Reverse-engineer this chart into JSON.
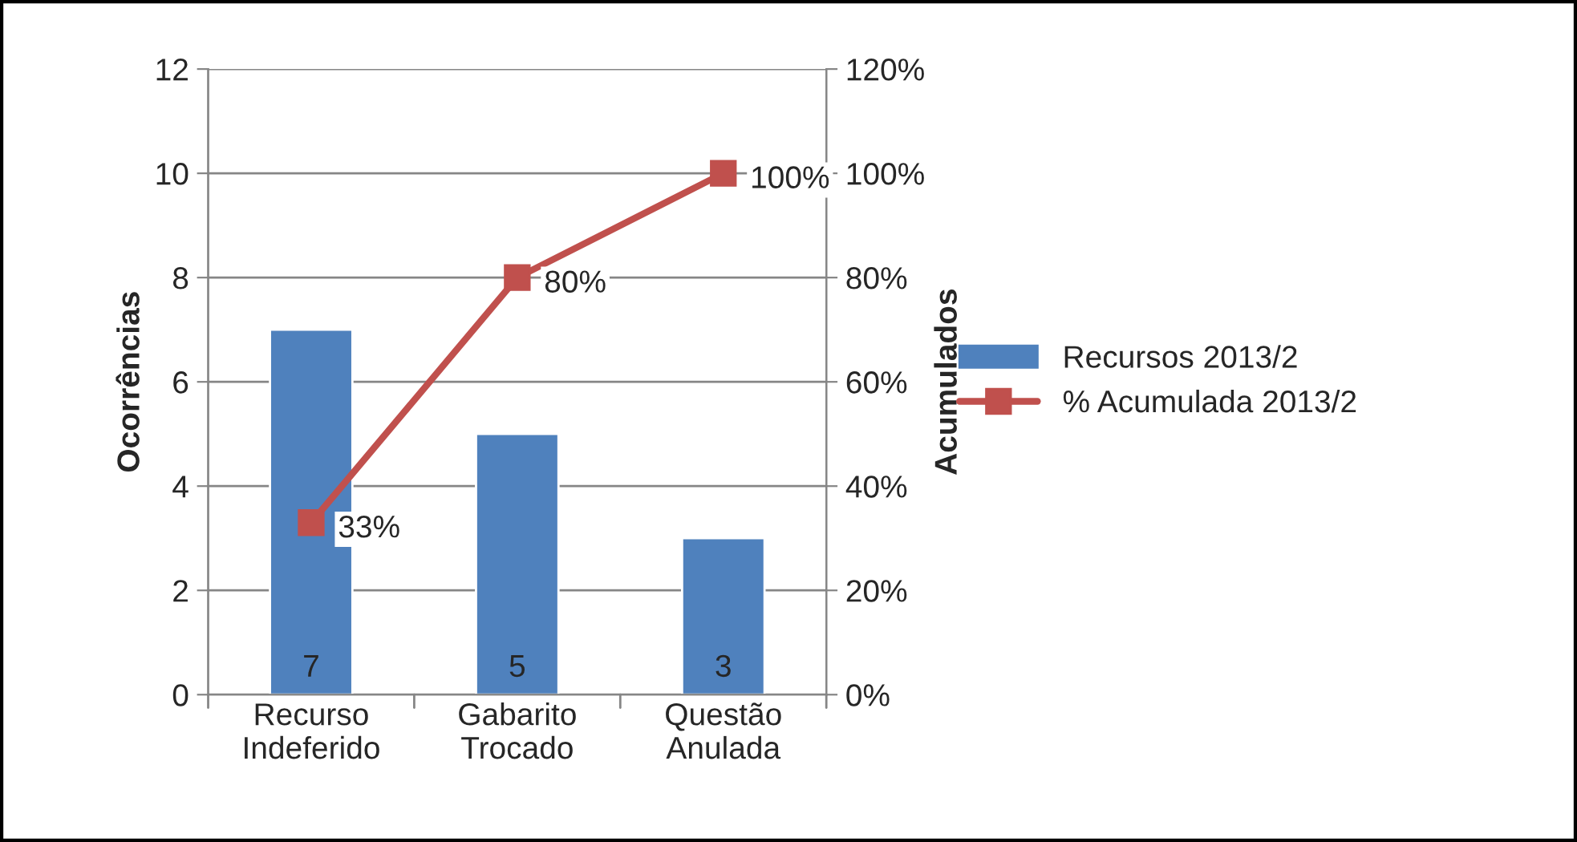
{
  "chart_data": {
    "type": "bar",
    "ylabel": "Ocorrências",
    "y2label": "Acumulados",
    "categories": [
      "Recurso\nIndeferido",
      "Gabarito\nTrocado",
      "Questão\nAnulada"
    ],
    "series": [
      {
        "name": "Recursos 2013/2",
        "color": "#4f81bd",
        "values": [
          7,
          5,
          3
        ],
        "value_labels": [
          "7",
          "5",
          "3"
        ]
      },
      {
        "name": "% Acumulada 2013/2",
        "type": "line",
        "axis": "y2",
        "color": "#c0504d",
        "marker": "square",
        "line_style": "solid",
        "values": [
          33,
          80,
          100
        ],
        "value_labels": [
          "33%",
          "80%",
          "100%"
        ]
      }
    ],
    "ylim": [
      0,
      12
    ],
    "yticks": [
      0,
      2,
      4,
      6,
      8,
      10,
      12
    ],
    "y2lim": [
      0,
      120
    ],
    "y2ticks": [
      {
        "value": 0,
        "label": "0%"
      },
      {
        "value": 20,
        "label": "20%"
      },
      {
        "value": 40,
        "label": "40%"
      },
      {
        "value": 60,
        "label": "60%"
      },
      {
        "value": 80,
        "label": "80%"
      },
      {
        "value": 100,
        "label": "100%"
      },
      {
        "value": 120,
        "label": "120%"
      }
    ],
    "grid": "y",
    "legend": "right"
  }
}
